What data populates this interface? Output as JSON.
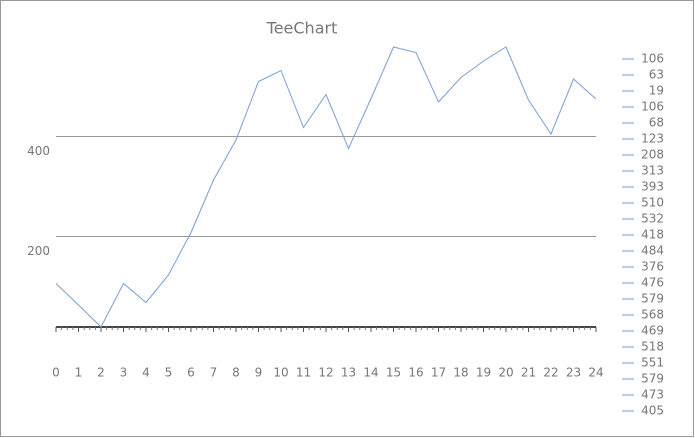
{
  "chart_data": {
    "type": "line",
    "title": "TeeChart",
    "x": [
      0,
      1,
      2,
      3,
      4,
      5,
      6,
      7,
      8,
      9,
      10,
      11,
      12,
      13,
      14,
      15,
      16,
      17,
      18,
      19,
      20,
      21,
      22,
      23,
      24
    ],
    "series": [
      {
        "color": "#7a9fd4",
        "values": [
          106,
          63,
          19,
          106,
          68,
          123,
          208,
          313,
          393,
          510,
          532,
          418,
          484,
          376,
          476,
          579,
          568,
          469,
          518,
          551,
          579,
          473,
          405,
          515,
          475
        ]
      }
    ],
    "xlim": [
      0,
      24
    ],
    "xticks": [
      0,
      1,
      2,
      3,
      4,
      5,
      6,
      7,
      8,
      9,
      10,
      11,
      12,
      13,
      14,
      15,
      16,
      17,
      18,
      19,
      20,
      21,
      22,
      23,
      24
    ],
    "ylim": [
      19,
      579
    ],
    "yticks": [
      200,
      400
    ],
    "grid": true,
    "legend": "right"
  }
}
